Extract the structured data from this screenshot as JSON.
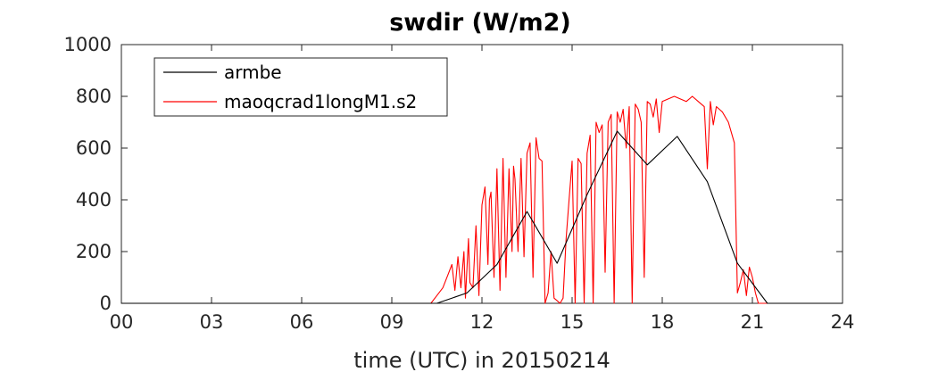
{
  "chart_data": {
    "type": "line",
    "title": "swdir  (W/m2)",
    "xlabel": "time (UTC) in 20150214",
    "ylabel": "",
    "xlim": [
      0,
      24
    ],
    "ylim": [
      0,
      1000
    ],
    "x_ticks": [
      0,
      3,
      6,
      9,
      12,
      15,
      18,
      21,
      24
    ],
    "x_tick_labels": [
      "00",
      "03",
      "06",
      "09",
      "12",
      "15",
      "18",
      "21",
      "24"
    ],
    "y_ticks": [
      0,
      200,
      400,
      600,
      800,
      1000
    ],
    "y_tick_labels": [
      "0",
      "200",
      "400",
      "600",
      "800",
      "1000"
    ],
    "grid": false,
    "legend_position": "top-left",
    "series": [
      {
        "name": "armbe",
        "color": "#000000",
        "x": [
          0,
          10.5,
          11.5,
          12.5,
          13.5,
          14.5,
          15.5,
          16.5,
          17.5,
          18.5,
          19.5,
          20.5,
          21.5,
          24
        ],
        "y": [
          0,
          0,
          40,
          150,
          355,
          155,
          420,
          665,
          535,
          645,
          470,
          155,
          0,
          0
        ]
      },
      {
        "name": "maoqcrad1longM1.s2",
        "color": "#ff0000",
        "x": [
          0,
          10.3,
          10.5,
          10.7,
          10.9,
          11.0,
          11.1,
          11.2,
          11.3,
          11.4,
          11.45,
          11.55,
          11.6,
          11.7,
          11.8,
          11.9,
          12.0,
          12.1,
          12.2,
          12.25,
          12.3,
          12.4,
          12.5,
          12.6,
          12.7,
          12.8,
          12.9,
          13.0,
          13.05,
          13.1,
          13.2,
          13.3,
          13.4,
          13.5,
          13.6,
          13.7,
          13.8,
          13.9,
          14.0,
          14.1,
          14.2,
          14.3,
          14.4,
          14.5,
          14.6,
          14.7,
          14.8,
          14.9,
          15.0,
          15.1,
          15.2,
          15.3,
          15.4,
          15.5,
          15.6,
          15.7,
          15.8,
          15.9,
          16.0,
          16.1,
          16.2,
          16.3,
          16.4,
          16.5,
          16.6,
          16.7,
          16.8,
          16.9,
          17.0,
          17.1,
          17.2,
          17.3,
          17.4,
          17.5,
          17.6,
          17.7,
          17.8,
          17.9,
          18.0,
          18.2,
          18.4,
          18.6,
          18.8,
          19.0,
          19.2,
          19.4,
          19.5,
          19.6,
          19.7,
          19.8,
          19.9,
          20.0,
          20.2,
          20.4,
          20.5,
          20.6,
          20.7,
          20.8,
          20.9,
          21.0,
          21.1,
          21.2,
          21.3,
          24
        ],
        "y": [
          0,
          0,
          30,
          60,
          120,
          150,
          50,
          180,
          60,
          200,
          20,
          250,
          80,
          60,
          300,
          30,
          380,
          450,
          150,
          400,
          430,
          100,
          520,
          50,
          560,
          100,
          520,
          200,
          530,
          480,
          200,
          560,
          180,
          580,
          620,
          100,
          640,
          560,
          550,
          0,
          40,
          200,
          20,
          10,
          0,
          20,
          250,
          400,
          550,
          0,
          560,
          540,
          0,
          580,
          650,
          0,
          700,
          660,
          690,
          120,
          700,
          730,
          0,
          740,
          700,
          750,
          600,
          760,
          0,
          770,
          750,
          700,
          100,
          780,
          770,
          720,
          790,
          660,
          780,
          790,
          800,
          790,
          780,
          800,
          780,
          760,
          520,
          780,
          690,
          760,
          750,
          740,
          700,
          620,
          40,
          80,
          130,
          30,
          140,
          100,
          40,
          0,
          0,
          0
        ]
      }
    ]
  }
}
